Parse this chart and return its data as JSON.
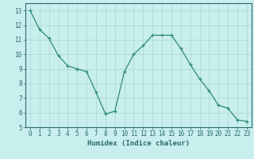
{
  "x": [
    0,
    1,
    2,
    3,
    4,
    5,
    6,
    7,
    8,
    9,
    10,
    11,
    12,
    13,
    14,
    15,
    16,
    17,
    18,
    19,
    20,
    21,
    22,
    23
  ],
  "y": [
    13.0,
    11.7,
    11.1,
    9.9,
    9.2,
    9.0,
    8.8,
    7.4,
    5.9,
    6.1,
    8.8,
    10.0,
    10.6,
    11.3,
    11.3,
    11.3,
    10.4,
    9.3,
    8.3,
    7.5,
    6.5,
    6.3,
    5.5,
    5.4
  ],
  "line_color": "#2e8b74",
  "marker": "+",
  "bg_color": "#c8eeee",
  "grid_color": "#a8d8d0",
  "axis_color": "#2e6b6b",
  "xlabel": "Humidex (Indice chaleur)",
  "xlim": [
    -0.5,
    23.5
  ],
  "ylim": [
    5,
    13.5
  ],
  "yticks": [
    5,
    6,
    7,
    8,
    9,
    10,
    11,
    12,
    13
  ],
  "xticks": [
    0,
    1,
    2,
    3,
    4,
    5,
    6,
    7,
    8,
    9,
    10,
    11,
    12,
    13,
    14,
    15,
    16,
    17,
    18,
    19,
    20,
    21,
    22,
    23
  ],
  "tick_fontsize": 5.5,
  "label_fontsize": 6.5
}
